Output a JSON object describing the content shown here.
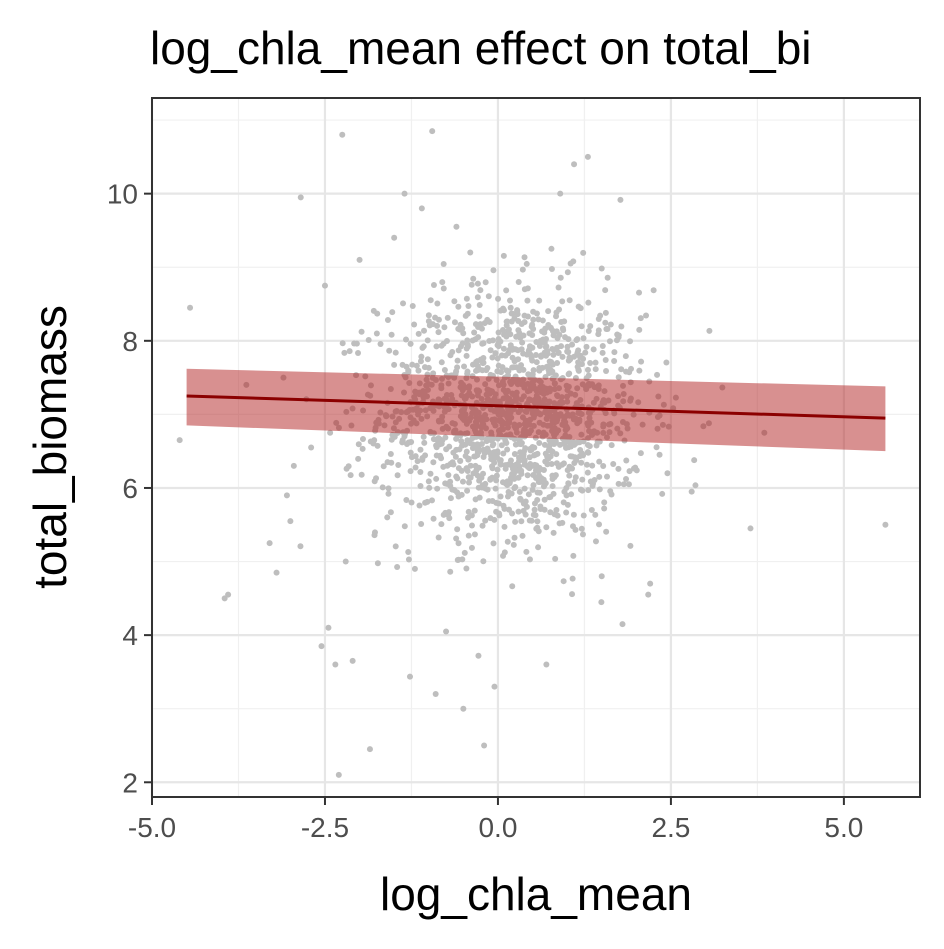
{
  "chart_data": {
    "type": "scatter",
    "title": "log_chla_mean effect on total_bi",
    "xlabel": "log_chla_mean",
    "ylabel": "total_biomass",
    "xlim": [
      -5.0,
      6.1
    ],
    "ylim": [
      1.8,
      11.3
    ],
    "xticks": [
      -5.0,
      -2.5,
      0.0,
      2.5,
      5.0
    ],
    "xtick_labels": [
      "-5.0",
      "-2.5",
      "0.0",
      "2.5",
      "5.0"
    ],
    "yticks": [
      2,
      4,
      6,
      8,
      10
    ],
    "ytick_labels": [
      "2",
      "4",
      "6",
      "8",
      "10"
    ],
    "grid": true,
    "legend": "none",
    "point_color": "#bebebe",
    "line_color": "#8b0000",
    "band_color": "#b22222",
    "points": {
      "x": [
        -4.6,
        -4.45,
        -3.95,
        -3.9,
        -3.3,
        -3.2,
        -3.1,
        -3.05,
        -3.0,
        -2.95,
        -2.85,
        -2.7,
        -2.55,
        -2.5,
        -2.45,
        -2.35,
        -2.3,
        -2.25,
        -2.2,
        -2.1,
        -2.0,
        -1.85,
        -1.75,
        -1.6,
        -1.5,
        -1.35,
        -1.2,
        -1.1,
        -0.95,
        -0.9,
        -0.75,
        -0.6,
        -0.5,
        -0.4,
        -0.3,
        -0.2,
        -0.05,
        0.1,
        0.3,
        0.5,
        0.7,
        0.9,
        1.1,
        1.2,
        1.3,
        1.5,
        1.8,
        2.2,
        2.45,
        2.8,
        3.65,
        3.85,
        5.6
      ],
      "y": [
        6.65,
        8.45,
        4.5,
        4.55,
        5.25,
        4.85,
        7.5,
        5.9,
        5.55,
        6.3,
        9.95,
        6.55,
        3.85,
        8.75,
        4.1,
        3.6,
        2.1,
        10.8,
        5.0,
        3.65,
        9.1,
        2.45,
        8.1,
        5.6,
        9.4,
        10.0,
        4.9,
        9.8,
        10.85,
        3.2,
        4.05,
        9.55,
        3.0,
        9.2,
        6.7,
        2.5,
        3.3,
        7.5,
        8.8,
        6.3,
        3.6,
        10.0,
        10.4,
        7.1,
        10.5,
        4.8,
        4.15,
        4.7,
        6.2,
        5.95,
        5.45,
        6.75,
        5.5
      ]
    },
    "cloud": {
      "center_x": 0.2,
      "center_y": 7.0,
      "sd_x": 0.95,
      "sd_y": 0.85,
      "n": 1500
    },
    "fit": {
      "x": [
        -4.5,
        5.6
      ],
      "y": [
        7.25,
        6.95
      ],
      "lower": [
        6.85,
        6.5
      ],
      "upper": [
        7.62,
        7.38
      ]
    }
  }
}
